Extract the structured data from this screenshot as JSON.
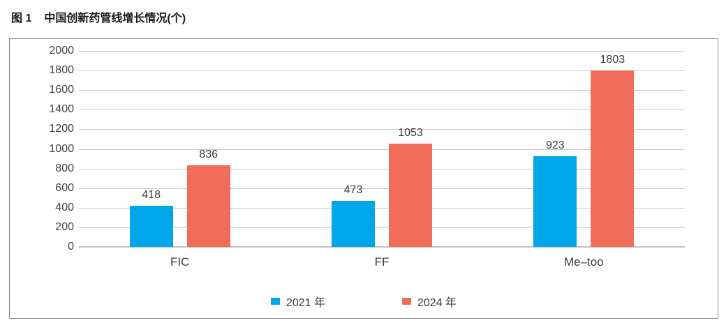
{
  "figure": {
    "label": "图 1",
    "title": "中国创新药管线增长情况(个)"
  },
  "chart_data": {
    "type": "bar",
    "title": "中国创新药管线增长情况(个)",
    "categories": [
      "FIC",
      "FF",
      "Me–too"
    ],
    "series": [
      {
        "name": "2021 年",
        "color": "#00a7e8",
        "values": [
          418,
          473,
          923
        ]
      },
      {
        "name": "2024 年",
        "color": "#f26c5a",
        "values": [
          836,
          1053,
          1803
        ]
      }
    ],
    "ylim": [
      0,
      2000
    ],
    "yticks": [
      0,
      200,
      400,
      600,
      800,
      1000,
      1200,
      1400,
      1600,
      1800,
      2000
    ],
    "grid": true,
    "value_labels": true,
    "legend_position": "bottom"
  },
  "colors": {
    "grid": "#cacaca",
    "baseline": "#c2c2c2",
    "frame_border": "#858585",
    "text": "#3b3b3b",
    "series_2021": "#00a7e8",
    "series_2024": "#f26c5a"
  }
}
